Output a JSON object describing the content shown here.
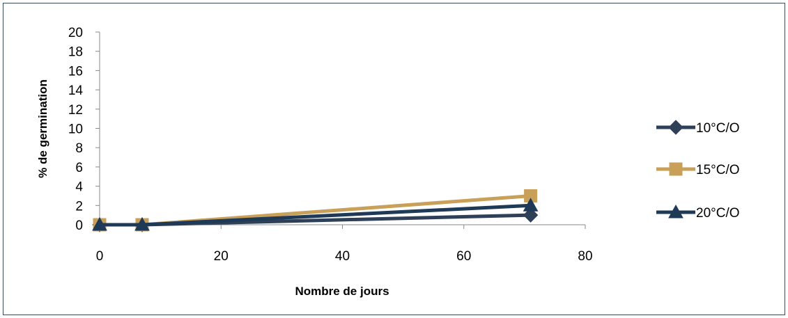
{
  "chart_data": {
    "type": "line",
    "xlabel": "Nombre de jours",
    "ylabel": "% de germination",
    "xlim": [
      0,
      80
    ],
    "ylim": [
      0,
      20
    ],
    "x_ticks": [
      "0",
      "20",
      "40",
      "60",
      "80"
    ],
    "y_ticks": [
      "0",
      "2",
      "4",
      "6",
      "8",
      "10",
      "12",
      "14",
      "16",
      "18",
      "20"
    ],
    "grid": false,
    "legend_position": "right",
    "series": [
      {
        "name": "10°C/O",
        "color": "#2e4057",
        "marker": "diamond",
        "points": [
          {
            "x": 0,
            "y": 0
          },
          {
            "x": 7,
            "y": 0
          },
          {
            "x": 71,
            "y": 1
          }
        ]
      },
      {
        "name": "15°C/O",
        "color": "#c9a05a",
        "marker": "square",
        "points": [
          {
            "x": 0,
            "y": 0
          },
          {
            "x": 7,
            "y": 0
          },
          {
            "x": 71,
            "y": 3
          }
        ]
      },
      {
        "name": "20°C/O",
        "color": "#1f3a56",
        "marker": "triangle",
        "points": [
          {
            "x": 0,
            "y": 0
          },
          {
            "x": 7,
            "y": 0
          },
          {
            "x": 71,
            "y": 2
          }
        ]
      }
    ]
  }
}
